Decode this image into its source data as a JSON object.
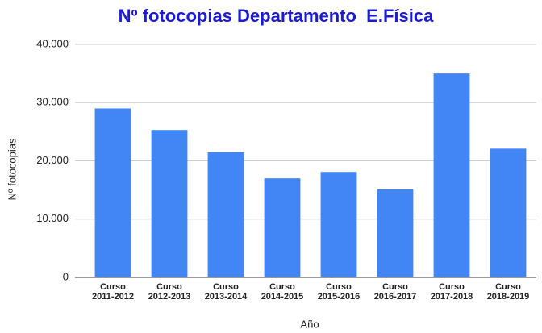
{
  "chart_data": {
    "type": "bar",
    "title": "Nº fotocopias Departamento  E.Física",
    "y_label": "Nº fotocopias",
    "x_label": "Año",
    "categories": [
      "Curso 2011-2012",
      "Curso 2012-2013",
      "Curso 2013-2014",
      "Curso 2014-2015",
      "Curso 2015-2016",
      "Curso 2016-2017",
      "Curso 2017-2018",
      "Curso 2018-2019"
    ],
    "values": [
      29000,
      25300,
      21500,
      17000,
      18100,
      15100,
      35000,
      22100
    ],
    "color": "#4285f4",
    "ylim": [
      0,
      40000
    ],
    "yticks": [
      0,
      {
        "value": 10000,
        "label": "10.000"
      },
      {
        "value": 20000,
        "label": "20.000"
      },
      {
        "value": 30000,
        "label": "30.000"
      },
      {
        "value": 40000,
        "label": "40.000"
      }
    ],
    "grid": true
  }
}
